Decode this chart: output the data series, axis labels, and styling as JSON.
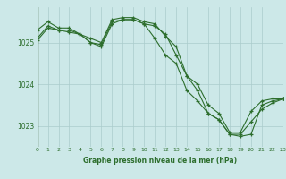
{
  "title": "Graphe pression niveau de la mer (hPa)",
  "background_color": "#cce8e8",
  "grid_color": "#aacccc",
  "line_color": "#2d6e2d",
  "xlim": [
    0,
    23
  ],
  "ylim": [
    1022.5,
    1025.85
  ],
  "yticks": [
    1023,
    1024,
    1025
  ],
  "xticks": [
    0,
    1,
    2,
    3,
    4,
    5,
    6,
    7,
    8,
    9,
    10,
    11,
    12,
    13,
    14,
    15,
    16,
    17,
    18,
    19,
    20,
    21,
    22,
    23
  ],
  "series": [
    [
      1025.3,
      1025.5,
      1025.35,
      1025.35,
      1025.2,
      1025.1,
      1025.0,
      1025.55,
      1025.6,
      1025.6,
      1025.5,
      1025.45,
      1025.15,
      1024.9,
      1024.2,
      1024.0,
      1023.5,
      1023.3,
      1022.85,
      1022.85,
      1023.35,
      1023.6,
      1023.65,
      1023.65
    ],
    [
      1025.1,
      1025.4,
      1025.3,
      1025.3,
      1025.2,
      1025.0,
      1024.9,
      1025.45,
      1025.55,
      1025.55,
      1025.45,
      1025.1,
      1024.7,
      1024.5,
      1023.85,
      1023.6,
      1023.3,
      1023.15,
      1022.8,
      1022.8,
      1023.1,
      1023.4,
      1023.55,
      1023.65
    ],
    [
      1025.05,
      1025.35,
      1025.3,
      1025.25,
      1025.2,
      1025.0,
      1024.95,
      1025.5,
      1025.55,
      1025.55,
      1025.45,
      1025.4,
      1025.2,
      1024.7,
      1024.2,
      1023.85,
      1023.3,
      1023.15,
      1022.8,
      1022.75,
      1022.8,
      1023.5,
      1023.6,
      1023.65
    ]
  ],
  "figsize": [
    3.2,
    2.0
  ],
  "dpi": 100
}
